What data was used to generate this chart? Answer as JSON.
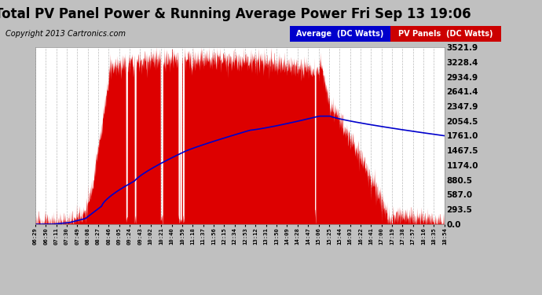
{
  "title": "Total PV Panel Power & Running Average Power Fri Sep 13 19:06",
  "copyright": "Copyright 2013 Cartronics.com",
  "ylabel_right_ticks": [
    0.0,
    293.5,
    587.0,
    880.5,
    1174.0,
    1467.5,
    1761.0,
    2054.5,
    2347.9,
    2641.4,
    2934.9,
    3228.4,
    3521.9
  ],
  "x_labels": [
    "06:29",
    "06:50",
    "07:11",
    "07:30",
    "07:49",
    "08:08",
    "08:27",
    "08:46",
    "09:05",
    "09:24",
    "09:43",
    "10:02",
    "10:21",
    "10:40",
    "10:59",
    "11:18",
    "11:37",
    "11:56",
    "12:15",
    "12:34",
    "12:53",
    "13:12",
    "13:31",
    "13:50",
    "14:09",
    "14:28",
    "14:47",
    "15:06",
    "15:25",
    "15:44",
    "16:03",
    "16:22",
    "16:41",
    "17:00",
    "17:19",
    "17:38",
    "17:57",
    "18:16",
    "18:35",
    "18:54"
  ],
  "bg_color": "#c0c0c0",
  "plot_bg_color": "#ffffff",
  "grid_color": "#aaaaaa",
  "title_color": "#000000",
  "legend_avg_bg": "#0000cc",
  "legend_pv_bg": "#cc0000",
  "legend_text_color": "#ffffff",
  "pv_color": "#dd0000",
  "avg_color": "#0000cc",
  "title_fontsize": 12,
  "copyright_fontsize": 7
}
